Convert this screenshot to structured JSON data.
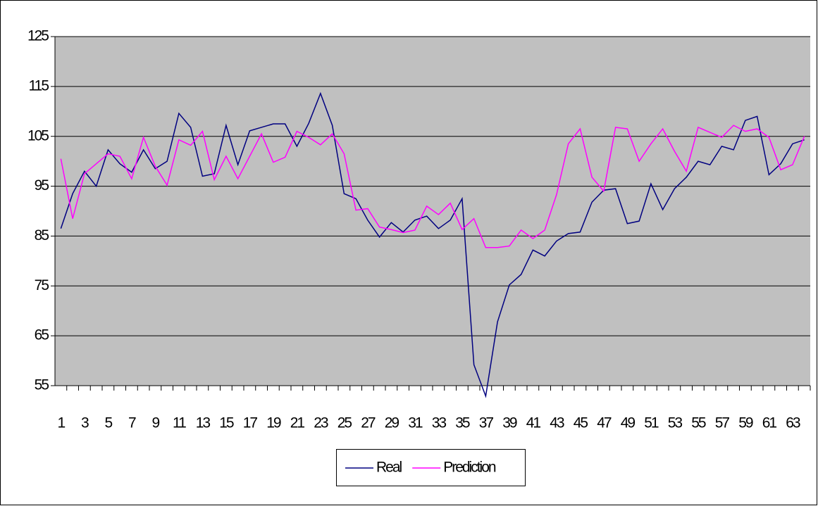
{
  "chart_data": {
    "type": "line",
    "categories": [
      1,
      null,
      3,
      null,
      5,
      null,
      7,
      null,
      9,
      null,
      11,
      null,
      13,
      null,
      15,
      null,
      17,
      null,
      19,
      null,
      21,
      null,
      23,
      null,
      25,
      null,
      27,
      null,
      29,
      null,
      31,
      null,
      33,
      null,
      35,
      null,
      37,
      null,
      39,
      null,
      41,
      null,
      43,
      null,
      45,
      null,
      47,
      null,
      49,
      null,
      51,
      null,
      53,
      null,
      55,
      null,
      57,
      null,
      59,
      null,
      61,
      null,
      63,
      null
    ],
    "series": [
      {
        "name": "Real",
        "color": "#000080",
        "values": [
          86.5,
          93.5,
          98,
          95,
          102.3,
          99.5,
          97.8,
          102.3,
          98.5,
          100,
          109.6,
          106.8,
          97,
          97.5,
          107.2,
          99.3,
          106.1,
          106.8,
          107.5,
          107.5,
          103,
          107.6,
          113.6,
          107.2,
          93.5,
          92.5,
          88.2,
          84.8,
          87.7,
          85.8,
          88.2,
          89,
          86.5,
          88.2,
          92.5,
          59.2,
          52.9,
          67.8,
          75.2,
          77.3,
          82.2,
          81,
          84,
          85.5,
          85.8,
          91.8,
          94.2,
          94.5,
          87.5,
          88,
          95.5,
          90.3,
          94.5,
          96.8,
          100,
          99.3,
          103,
          102.3,
          108.2,
          109,
          97.3,
          99.5,
          103.5,
          104.3
        ]
      },
      {
        "name": "Prediction",
        "color": "#ff00ff",
        "values": [
          100.5,
          88.5,
          97.5,
          99.5,
          101.5,
          101,
          96.5,
          104.8,
          99,
          95.2,
          104.3,
          103.2,
          106,
          96.3,
          101,
          96.5,
          101,
          105.5,
          99.8,
          100.8,
          106,
          104.8,
          103.3,
          105.5,
          101.5,
          90.2,
          90.5,
          86.8,
          86.3,
          85.7,
          86.2,
          91,
          89.3,
          91.6,
          86.3,
          88.5,
          82.7,
          82.7,
          83,
          86.2,
          84.5,
          86.2,
          93.3,
          103.5,
          106.5,
          96.8,
          94,
          106.8,
          106.5,
          100,
          103.5,
          106.5,
          102,
          98,
          106.8,
          105.8,
          104.8,
          107.2,
          106,
          106.5,
          104.8,
          98.3,
          99.3,
          105
        ]
      }
    ],
    "ylim": [
      55,
      125
    ],
    "yticks": [
      55,
      65,
      75,
      85,
      95,
      105,
      115,
      125
    ],
    "grid": true,
    "legend": "bottom",
    "plot_background": "#c0c0c0"
  }
}
